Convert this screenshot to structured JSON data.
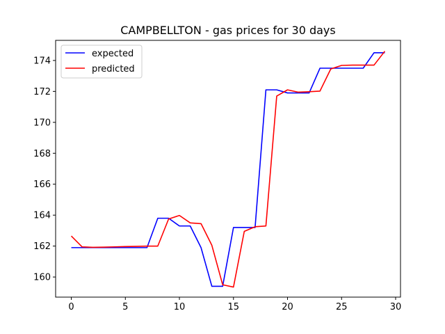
{
  "chart_data": {
    "type": "line",
    "title": "CAMPBELLTON - gas prices for 30 days",
    "xlabel": "",
    "ylabel": "",
    "xlim": [
      -1.45,
      30.45
    ],
    "ylim": [
      158.7,
      175.3
    ],
    "xticks": [
      0,
      5,
      10,
      15,
      20,
      25,
      30
    ],
    "yticks": [
      160,
      162,
      164,
      166,
      168,
      170,
      172,
      174
    ],
    "grid": false,
    "legend_position": "top-left",
    "x": [
      0,
      1,
      2,
      3,
      4,
      5,
      6,
      7,
      8,
      9,
      10,
      11,
      12,
      13,
      14,
      15,
      16,
      17,
      18,
      19,
      20,
      21,
      22,
      23,
      24,
      25,
      26,
      27,
      28,
      29
    ],
    "series": [
      {
        "name": "expected",
        "color": "#0000ff",
        "values": [
          161.9,
          161.9,
          161.9,
          161.9,
          161.9,
          161.9,
          161.9,
          161.9,
          163.8,
          163.8,
          163.3,
          163.3,
          161.9,
          159.4,
          159.4,
          163.2,
          163.2,
          163.2,
          172.1,
          172.1,
          171.9,
          171.9,
          171.9,
          173.5,
          173.5,
          173.5,
          173.5,
          173.5,
          174.5,
          174.5
        ]
      },
      {
        "name": "predicted",
        "color": "#ff0000",
        "values": [
          162.65,
          161.95,
          161.92,
          161.93,
          161.95,
          161.97,
          161.98,
          162.0,
          162.0,
          163.75,
          163.98,
          163.5,
          163.45,
          162.05,
          159.5,
          159.35,
          162.95,
          163.25,
          163.3,
          171.7,
          172.1,
          171.95,
          171.98,
          172.02,
          173.45,
          173.68,
          173.7,
          173.7,
          173.7,
          174.6
        ]
      }
    ]
  }
}
